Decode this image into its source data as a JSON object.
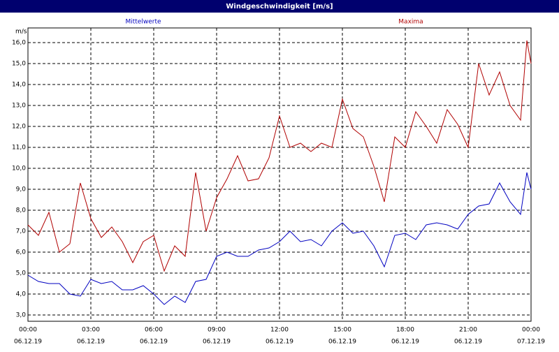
{
  "chart_data": {
    "type": "line",
    "title": "Windgeschwindigkeit [m/s]",
    "y_unit": "m/s",
    "x": [
      0,
      0.5,
      1,
      1.5,
      2,
      2.5,
      3,
      3.5,
      4,
      4.5,
      5,
      5.5,
      6,
      6.5,
      7,
      7.5,
      8,
      8.5,
      9,
      9.5,
      10,
      10.5,
      11,
      11.5,
      12,
      12.5,
      13,
      13.5,
      14,
      14.5,
      15,
      15.5,
      16,
      16.5,
      17,
      17.5,
      18,
      18.5,
      19,
      19.5,
      20,
      20.5,
      21,
      21.5,
      22,
      22.5,
      23,
      23.5,
      23.8,
      24
    ],
    "series": [
      {
        "name": "Mittelwerte",
        "color": "#0000c0",
        "values": [
          4.9,
          4.6,
          4.5,
          4.5,
          4.0,
          3.9,
          4.7,
          4.5,
          4.6,
          4.2,
          4.2,
          4.4,
          4.0,
          3.5,
          3.9,
          3.6,
          4.6,
          4.7,
          5.8,
          6.0,
          5.8,
          5.8,
          6.1,
          6.2,
          6.5,
          7.0,
          6.5,
          6.6,
          6.3,
          7.0,
          7.4,
          6.9,
          7.0,
          6.3,
          5.3,
          6.8,
          6.9,
          6.6,
          7.3,
          7.4,
          7.3,
          7.1,
          7.8,
          8.2,
          8.3,
          9.3,
          8.4,
          7.8,
          9.8,
          9.0
        ]
      },
      {
        "name": "Maxima",
        "color": "#b00000",
        "values": [
          7.3,
          6.8,
          7.9,
          6.0,
          6.4,
          9.3,
          7.6,
          6.7,
          7.2,
          6.5,
          5.5,
          6.5,
          6.8,
          5.1,
          6.3,
          5.8,
          9.8,
          7.0,
          8.6,
          9.5,
          10.6,
          9.4,
          9.5,
          10.5,
          12.5,
          11.0,
          11.2,
          10.8,
          11.2,
          11.0,
          13.3,
          11.9,
          11.5,
          10.1,
          8.4,
          11.5,
          11.0,
          12.7,
          12.0,
          11.2,
          12.8,
          12.1,
          11.0,
          15.0,
          13.5,
          14.6,
          13.0,
          12.3,
          16.1,
          15.0
        ]
      }
    ],
    "xlim": [
      0,
      24
    ],
    "xticks": [
      {
        "value": 0,
        "label": "00:00"
      },
      {
        "value": 3,
        "label": "03:00"
      },
      {
        "value": 6,
        "label": "06:00"
      },
      {
        "value": 9,
        "label": "09:00"
      },
      {
        "value": 12,
        "label": "12:00"
      },
      {
        "value": 15,
        "label": "15:00"
      },
      {
        "value": 18,
        "label": "18:00"
      },
      {
        "value": 21,
        "label": "21:00"
      },
      {
        "value": 24,
        "label": "00:00"
      }
    ],
    "xtick_dates": [
      "06.12.19",
      "06.12.19",
      "06.12.19",
      "06.12.19",
      "06.12.19",
      "06.12.19",
      "06.12.19",
      "06.12.19",
      "07.12.19"
    ],
    "ylim": [
      2.7,
      16.7
    ],
    "yticks": [
      {
        "value": 3,
        "label": "3,0"
      },
      {
        "value": 4,
        "label": "4,0"
      },
      {
        "value": 5,
        "label": "5,0"
      },
      {
        "value": 6,
        "label": "6,0"
      },
      {
        "value": 7,
        "label": "7,0"
      },
      {
        "value": 8,
        "label": "8,0"
      },
      {
        "value": 9,
        "label": "9,0"
      },
      {
        "value": 10,
        "label": "10,0"
      },
      {
        "value": 11,
        "label": "11,0"
      },
      {
        "value": 12,
        "label": "12,0"
      },
      {
        "value": 13,
        "label": "13,0"
      },
      {
        "value": 14,
        "label": "14,0"
      },
      {
        "value": 15,
        "label": "15,0"
      },
      {
        "value": 16,
        "label": "16,0"
      }
    ],
    "grid": true
  }
}
